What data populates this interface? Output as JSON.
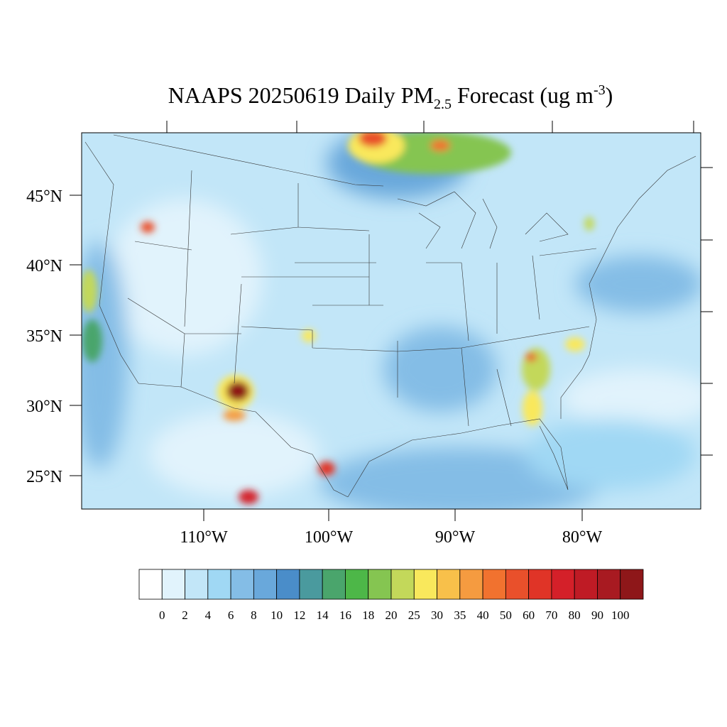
{
  "title": {
    "main": "NAAPS 20250619 Daily PM",
    "sub": "2.5",
    "tail": " Forecast (ug m",
    "sup": "-3",
    "end": ")"
  },
  "lat_labels": [
    "45°N",
    "40°N",
    "35°N",
    "30°N",
    "25°N"
  ],
  "lon_labels": [
    "110°W",
    "100°W",
    "90°W",
    "80°W"
  ],
  "colorbar": {
    "labels": [
      "0",
      "2",
      "4",
      "6",
      "8",
      "10",
      "12",
      "14",
      "16",
      "18",
      "20",
      "25",
      "30",
      "35",
      "40",
      "50",
      "60",
      "70",
      "80",
      "90",
      "100"
    ],
    "colors": [
      "#ffffff",
      "#e1f3fc",
      "#c2e6f8",
      "#a0d8f4",
      "#84bde6",
      "#69a8db",
      "#4a8dc9",
      "#4a9a9e",
      "#4aa56c",
      "#4db748",
      "#85c551",
      "#c3d85a",
      "#f9e85c",
      "#f8c04a",
      "#f59b40",
      "#f1722f",
      "#e9502b",
      "#e03427",
      "#d42029",
      "#bf1b25",
      "#a81a21",
      "#8e1719"
    ]
  }
}
